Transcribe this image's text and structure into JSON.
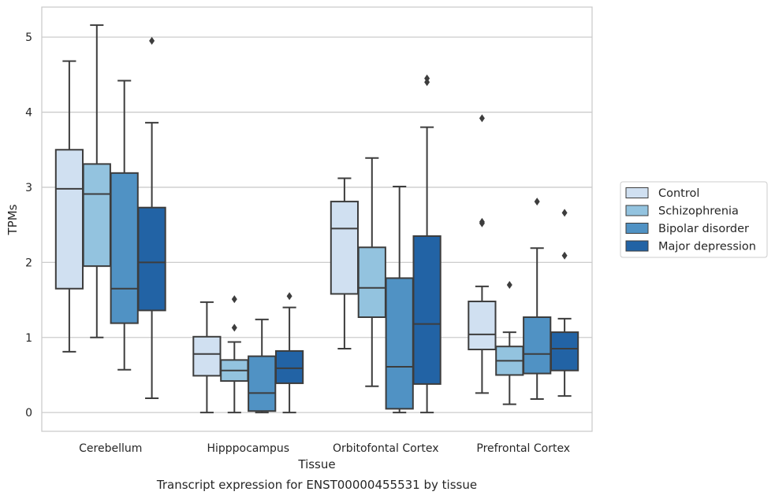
{
  "chart_data": {
    "type": "boxplot",
    "title": "Transcript expression for ENST00000455531 by tissue",
    "xlabel": "Tissue",
    "ylabel": "TPMs",
    "ylim": [
      -0.25,
      5.4
    ],
    "yticks": [
      0,
      1,
      2,
      3,
      4,
      5
    ],
    "grid": "horizontal",
    "legend_position": "right",
    "categories": [
      "Cerebellum",
      "Hipppocampus",
      "Orbitofontal Cortex",
      "Prefrontal Cortex"
    ],
    "series": [
      {
        "name": "Control",
        "color": "#d0e0f1",
        "boxes": [
          {
            "whislo": 0.81,
            "q1": 1.65,
            "med": 2.98,
            "q3": 3.5,
            "whishi": 4.68,
            "fliers": []
          },
          {
            "whislo": 0.0,
            "q1": 0.49,
            "med": 0.78,
            "q3": 1.01,
            "whishi": 1.47,
            "fliers": []
          },
          {
            "whislo": 0.85,
            "q1": 1.58,
            "med": 2.45,
            "q3": 2.81,
            "whishi": 3.12,
            "fliers": []
          },
          {
            "whislo": 0.26,
            "q1": 0.84,
            "med": 1.04,
            "q3": 1.48,
            "whishi": 1.68,
            "fliers": [
              2.52,
              2.54,
              3.92
            ]
          }
        ]
      },
      {
        "name": "Schizophrenia",
        "color": "#93c3df",
        "boxes": [
          {
            "whislo": 1.0,
            "q1": 1.95,
            "med": 2.91,
            "q3": 3.31,
            "whishi": 5.16,
            "fliers": []
          },
          {
            "whislo": 0.0,
            "q1": 0.42,
            "med": 0.56,
            "q3": 0.7,
            "whishi": 0.94,
            "fliers": [
              1.13,
              1.51
            ]
          },
          {
            "whislo": 0.35,
            "q1": 1.27,
            "med": 1.66,
            "q3": 2.2,
            "whishi": 3.39,
            "fliers": []
          },
          {
            "whislo": 0.11,
            "q1": 0.5,
            "med": 0.69,
            "q3": 0.88,
            "whishi": 1.07,
            "fliers": [
              1.7
            ]
          }
        ]
      },
      {
        "name": "Bipolar disorder",
        "color": "#5092c4",
        "boxes": [
          {
            "whislo": 0.57,
            "q1": 1.19,
            "med": 1.65,
            "q3": 3.19,
            "whishi": 4.42,
            "fliers": []
          },
          {
            "whislo": 0.0,
            "q1": 0.02,
            "med": 0.26,
            "q3": 0.75,
            "whishi": 1.24,
            "fliers": []
          },
          {
            "whislo": 0.0,
            "q1": 0.05,
            "med": 0.61,
            "q3": 1.79,
            "whishi": 3.01,
            "fliers": []
          },
          {
            "whislo": 0.18,
            "q1": 0.52,
            "med": 0.78,
            "q3": 1.27,
            "whishi": 2.19,
            "fliers": [
              2.81
            ]
          }
        ]
      },
      {
        "name": "Major depression",
        "color": "#2263a5",
        "boxes": [
          {
            "whislo": 0.19,
            "q1": 1.36,
            "med": 2.0,
            "q3": 2.73,
            "whishi": 3.86,
            "fliers": [
              4.95
            ]
          },
          {
            "whislo": 0.0,
            "q1": 0.39,
            "med": 0.59,
            "q3": 0.82,
            "whishi": 1.4,
            "fliers": [
              1.55
            ]
          },
          {
            "whislo": 0.0,
            "q1": 0.38,
            "med": 1.18,
            "q3": 2.35,
            "whishi": 3.8,
            "fliers": [
              4.4,
              4.45
            ]
          },
          {
            "whislo": 0.22,
            "q1": 0.56,
            "med": 0.85,
            "q3": 1.07,
            "whishi": 1.25,
            "fliers": [
              2.09,
              2.66
            ]
          }
        ]
      }
    ]
  }
}
